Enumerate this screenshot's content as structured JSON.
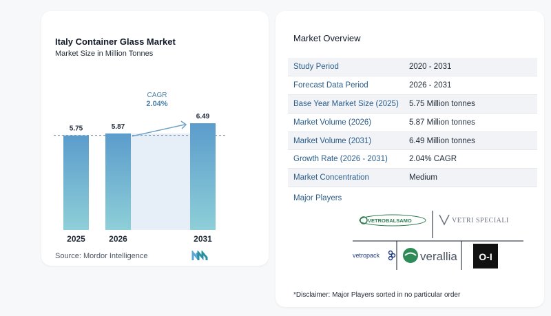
{
  "chart_data": {
    "type": "bar",
    "title": "Italy Container Glass Market",
    "subtitle": "Market Size in Million Tonnes",
    "categories": [
      "2025",
      "2026",
      "2031"
    ],
    "values": [
      5.75,
      5.87,
      6.49
    ],
    "value_labels": [
      "5.75",
      "5.87",
      "6.49"
    ],
    "cagr_label": "CAGR",
    "cagr_value": "2.04%",
    "source": "Source:  Mordor Intelligence",
    "colors": {
      "bar_top": "#5b9ccc",
      "bar_bottom": "#8ecfd8",
      "band": "#e6eef7",
      "arrow": "#6aa0c8"
    }
  },
  "overview": {
    "title": "Market Overview",
    "rows": [
      {
        "key": "Study Period",
        "value": "2020 - 2031"
      },
      {
        "key": "Forecast Data Period",
        "value": "2026 - 2031"
      },
      {
        "key": "Base Year Market Size (2025)",
        "value": "5.75 Million tonnes"
      },
      {
        "key": "Market Volume (2026)",
        "value": "5.87 Million tonnes"
      },
      {
        "key": "Market Volume (2031)",
        "value": "6.49 Million tonnes"
      },
      {
        "key": "Growth Rate (2026 - 2031)",
        "value": "2.04% CAGR"
      },
      {
        "key": "Market Concentration",
        "value": "Medium"
      }
    ],
    "players_label": "Major Players",
    "players": {
      "p1": "VETROBALSAMO",
      "p2": "VETRI SPECIALI",
      "p3": "vetropack",
      "p4": "verallia",
      "p5": "O-I"
    },
    "disclaimer": "*Disclaimer: Major Players sorted in no particular order"
  }
}
